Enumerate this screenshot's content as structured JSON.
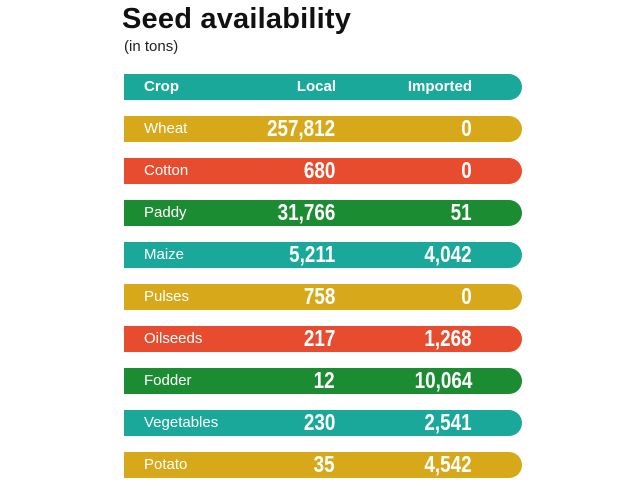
{
  "title": "Seed availability",
  "subtitle": "(in tons)",
  "colors": {
    "teal": "#1aa89a",
    "mustard": "#d6a81a",
    "red": "#e84c2e",
    "green": "#1c8c33"
  },
  "header": {
    "crop": "Crop",
    "local": "Local",
    "imported": "Imported",
    "color": "#1aa89a"
  },
  "rows": [
    {
      "crop": "Wheat",
      "local": "257,812",
      "imported": "0",
      "color": "#d6a81a"
    },
    {
      "crop": "Cotton",
      "local": "680",
      "imported": "0",
      "color": "#e84c2e"
    },
    {
      "crop": "Paddy",
      "local": "31,766",
      "imported": "51",
      "color": "#1c8c33"
    },
    {
      "crop": "Maize",
      "local": "5,211",
      "imported": "4,042",
      "color": "#1aa89a"
    },
    {
      "crop": "Pulses",
      "local": "758",
      "imported": "0",
      "color": "#d6a81a"
    },
    {
      "crop": "Oilseeds",
      "local": "217",
      "imported": "1,268",
      "color": "#e84c2e"
    },
    {
      "crop": "Fodder",
      "local": "12",
      "imported": "10,064",
      "color": "#1c8c33"
    },
    {
      "crop": "Vegetables",
      "local": "230",
      "imported": "2,541",
      "color": "#1aa89a"
    },
    {
      "crop": "Potato",
      "local": "35",
      "imported": "4,542",
      "color": "#d6a81a"
    }
  ],
  "chart_data": {
    "type": "table",
    "title": "Seed availability",
    "subtitle": "(in tons)",
    "columns": [
      "Crop",
      "Local",
      "Imported"
    ],
    "rows": [
      [
        "Wheat",
        257812,
        0
      ],
      [
        "Cotton",
        680,
        0
      ],
      [
        "Paddy",
        31766,
        51
      ],
      [
        "Maize",
        5211,
        4042
      ],
      [
        "Pulses",
        758,
        0
      ],
      [
        "Oilseeds",
        217,
        1268
      ],
      [
        "Fodder",
        12,
        10064
      ],
      [
        "Vegetables",
        230,
        2541
      ],
      [
        "Potato",
        35,
        4542
      ]
    ]
  }
}
